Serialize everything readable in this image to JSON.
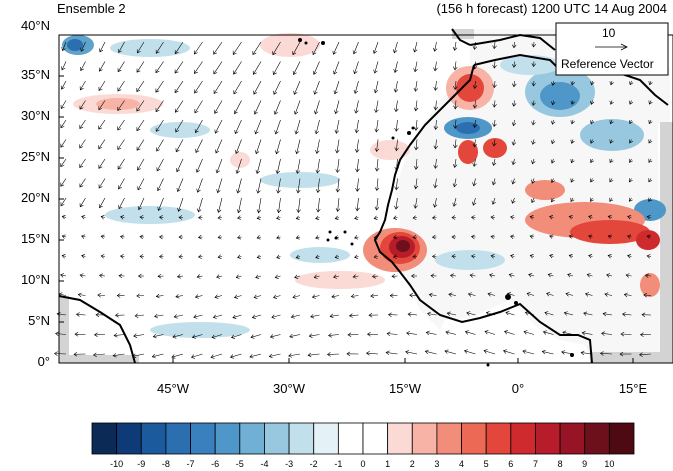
{
  "header": {
    "left_title": "Ensemble 2",
    "right_title": "(156 h forecast) 1200 UTC 14 Aug 2004"
  },
  "map": {
    "lon_range": [
      -57,
      20
    ],
    "lat_range": [
      0,
      40
    ],
    "y_ticks": [
      "0°",
      "5°N",
      "10°N",
      "15°N",
      "20°N",
      "25°N",
      "30°N",
      "35°N",
      "40°N"
    ],
    "x_ticks": [
      "45°W",
      "30°W",
      "15°W",
      "0°",
      "15°E"
    ]
  },
  "reference_vector": {
    "value": "10",
    "label": "Reference Vector"
  },
  "colorbar": {
    "labels": [
      "-10",
      "-9",
      "-8",
      "-7",
      "-6",
      "-5",
      "-4",
      "-3",
      "-2",
      "-1",
      "0",
      "1",
      "2",
      "3",
      "4",
      "5",
      "6",
      "7",
      "8",
      "9",
      "10"
    ],
    "colors": [
      "#0b2a55",
      "#0f3a78",
      "#1c5a9e",
      "#2b6fb0",
      "#3a80bf",
      "#4f97c9",
      "#71b0d5",
      "#98c8df",
      "#c2e0ec",
      "#e4f2f7",
      "#ffffff",
      "#ffffff",
      "#fbdad6",
      "#f6b3a6",
      "#f28d7a",
      "#ec6a55",
      "#e3463a",
      "#cf2a2d",
      "#b71c2b",
      "#961426",
      "#6e0f1c",
      "#4e0a13"
    ]
  }
}
